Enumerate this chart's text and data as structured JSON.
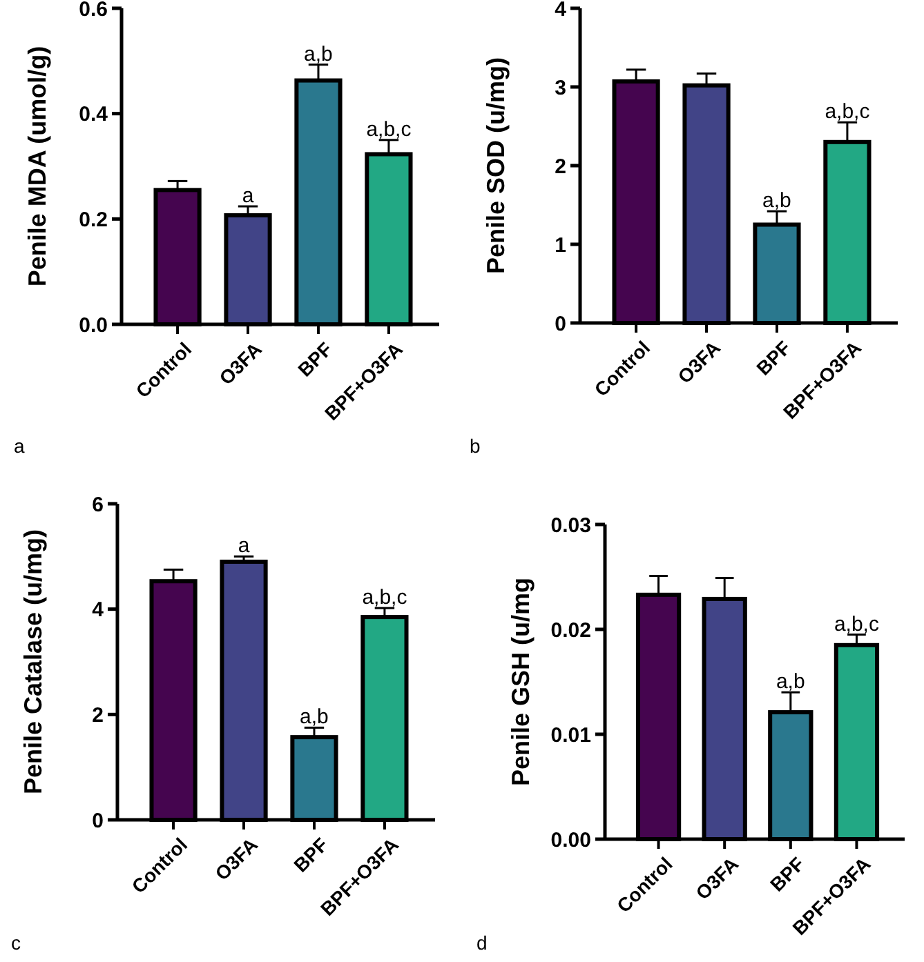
{
  "chart_data": [
    {
      "type": "bar",
      "ylabel": "Penile MDA (umol/g)",
      "categories": [
        "Control",
        "O3FA",
        "BPF",
        "BPF+O3FA"
      ],
      "values": [
        0.255,
        0.207,
        0.463,
        0.323
      ],
      "colors": [
        "#45054f",
        "#414487",
        "#2a788e",
        "#22a884"
      ],
      "errors": [
        [
          0.255,
          0.272
        ],
        [
          0.207,
          0.224
        ],
        [
          0.463,
          0.493
        ],
        [
          0.323,
          0.35
        ]
      ],
      "ylim": [
        0,
        0.6
      ],
      "yticks": [
        {
          "value": 0,
          "label": "0.0"
        },
        0.2,
        0.4,
        0.6
      ],
      "annotations": [
        "a",
        {
          "text": "a",
          "x": "O3FA",
          "y": 0.224
        },
        {
          "text": "a,b",
          "x": "BPF",
          "y": 0.493
        },
        {
          "text": "a,b,c",
          "x": "BPF+O3FA",
          "y": 0.35
        }
      ]
    },
    {
      "type": "bar",
      "ylabel": "Penile SOD (u/mg)",
      "categories": [
        "Control",
        "O3FA",
        "BPF",
        "BPF+O3FA"
      ],
      "values": [
        3.07,
        3.02,
        1.25,
        2.3
      ],
      "colors": [
        "#45054f",
        "#414487",
        "#2a788e",
        "#22a884"
      ],
      "errors": [
        [
          3.07,
          3.22
        ],
        [
          3.02,
          3.17
        ],
        [
          1.25,
          1.42
        ],
        [
          2.3,
          2.55
        ]
      ],
      "ylim": [
        0,
        4
      ],
      "yticks": [
        0,
        1,
        2,
        3,
        4
      ],
      "annotations": [
        "b",
        {
          "text": "a,b",
          "x": "BPF",
          "y": 1.42
        },
        {
          "text": "a,b,c",
          "x": "BPF+O3FA",
          "y": 2.55
        }
      ]
    },
    {
      "type": "bar",
      "ylabel": "Penile Catalase (u/mg)",
      "categories": [
        "Control",
        "O3FA",
        "BPF",
        "BPF+O3FA"
      ],
      "values": [
        4.53,
        4.9,
        1.57,
        3.85
      ],
      "colors": [
        "#45054f",
        "#414487",
        "#2a788e",
        "#22a884"
      ],
      "errors": [
        [
          4.53,
          4.75
        ],
        [
          4.9,
          5.0
        ],
        [
          1.57,
          1.75
        ],
        [
          3.85,
          4.02
        ]
      ],
      "ylim": [
        0,
        6
      ],
      "yticks": [
        0,
        2,
        4,
        6
      ],
      "annotations": [
        "c",
        {
          "text": "a",
          "x": "O3FA",
          "y": 5.0
        },
        {
          "text": "a,b",
          "x": "BPF",
          "y": 1.75
        },
        {
          "text": "a,b,c",
          "x": "BPF+O3FA",
          "y": 4.02
        }
      ]
    },
    {
      "type": "bar",
      "ylabel": "Penile GSH (u/mg",
      "categories": [
        "Control",
        "O3FA",
        "BPF",
        "BPF+O3FA"
      ],
      "values": [
        0.0233,
        0.0229,
        0.0121,
        0.0185
      ],
      "colors": [
        "#45054f",
        "#414487",
        "#2a788e",
        "#22a884"
      ],
      "errors": [
        [
          0.0233,
          0.0251
        ],
        [
          0.0229,
          0.0249
        ],
        [
          0.0121,
          0.014
        ],
        [
          0.0185,
          0.0195
        ]
      ],
      "ylim": [
        0,
        0.03
      ],
      "yticks": [
        {
          "value": 0,
          "label": "0.00"
        },
        {
          "value": 0.01,
          "label": "0.01"
        },
        {
          "value": 0.02,
          "label": "0.02"
        },
        {
          "value": 0.03,
          "label": "0.03"
        }
      ],
      "annotations": [
        "d",
        {
          "text": "a,b",
          "x": "BPF",
          "y": 0.014
        },
        {
          "text": "a,b,c",
          "x": "BPF+O3FA",
          "y": 0.0195
        }
      ]
    }
  ]
}
